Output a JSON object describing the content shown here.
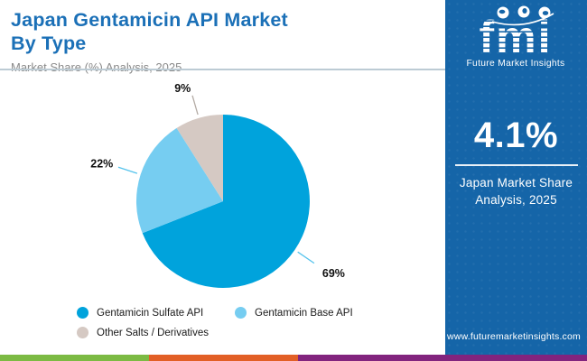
{
  "header": {
    "title_line1": "Japan Gentamicin API Market",
    "title_line2": "By Type",
    "subtitle": "Market Share (%) Analysis, 2025"
  },
  "chart_data": {
    "type": "pie",
    "title": "Japan Gentamicin API Market By Type",
    "subtitle": "Market Share (%) Analysis, 2025",
    "value_unit": "%",
    "start_angle_deg": 0,
    "direction": "clockwise",
    "legend_position": "bottom-left",
    "slices": [
      {
        "label": "Gentamicin Sulfate API",
        "value": 69,
        "color": "#00A3DC",
        "leader_color": "#55C3EC"
      },
      {
        "label": "Gentamicin Base API",
        "value": 22,
        "color": "#76CDF1",
        "leader_color": "#55C3EC"
      },
      {
        "label": "Other Salts / Derivatives",
        "value": 9,
        "color": "#D5C9C3",
        "leader_color": "#B3ABA4"
      }
    ]
  },
  "sidebar": {
    "brand": "fmi",
    "brand_tagline": "Future Market Insights",
    "stat_value": "4.1%",
    "stat_caption_line1": "Japan Market Share",
    "stat_caption_line2": "Analysis, 2025",
    "website": "www.futuremarketinsights.com",
    "bg_color": "#1565A8"
  },
  "footer_stripe": {
    "colors": [
      "#7CBA43",
      "#E25F26",
      "#82247E"
    ]
  },
  "colors": {
    "title": "#1B70B7",
    "subtitle": "#8A8A8A",
    "divider": "#BCCBD4"
  }
}
